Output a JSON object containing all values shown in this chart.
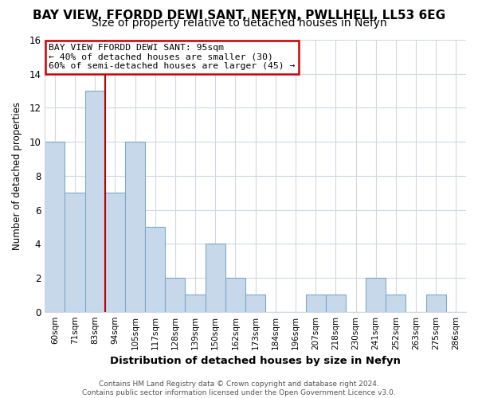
{
  "title": "BAY VIEW, FFORDD DEWI SANT, NEFYN, PWLLHELI, LL53 6EG",
  "subtitle": "Size of property relative to detached houses in Nefyn",
  "xlabel": "Distribution of detached houses by size in Nefyn",
  "ylabel": "Number of detached properties",
  "bin_labels": [
    "60sqm",
    "71sqm",
    "83sqm",
    "94sqm",
    "105sqm",
    "117sqm",
    "128sqm",
    "139sqm",
    "150sqm",
    "162sqm",
    "173sqm",
    "184sqm",
    "196sqm",
    "207sqm",
    "218sqm",
    "230sqm",
    "241sqm",
    "252sqm",
    "263sqm",
    "275sqm",
    "286sqm"
  ],
  "counts": [
    10,
    7,
    13,
    7,
    10,
    5,
    2,
    1,
    4,
    2,
    1,
    0,
    0,
    1,
    1,
    0,
    2,
    1,
    0,
    1,
    0
  ],
  "bar_color": "#c8d8eb",
  "bar_edge_color": "#7aaac8",
  "highlight_line_color": "#bb0000",
  "highlight_after_bin": 2,
  "ylim": [
    0,
    16
  ],
  "yticks": [
    0,
    2,
    4,
    6,
    8,
    10,
    12,
    14,
    16
  ],
  "annotation_title": "BAY VIEW FFORDD DEWI SANT: 95sqm",
  "annotation_line1": "← 40% of detached houses are smaller (30)",
  "annotation_line2": "60% of semi-detached houses are larger (45) →",
  "annotation_box_color": "#ffffff",
  "annotation_box_edge": "#cc0000",
  "footer_line1": "Contains HM Land Registry data © Crown copyright and database right 2024.",
  "footer_line2": "Contains public sector information licensed under the Open Government Licence v3.0.",
  "background_color": "#ffffff",
  "plot_bg_color": "#ffffff",
  "grid_color": "#d0d8e4",
  "title_fontsize": 11,
  "subtitle_fontsize": 10
}
